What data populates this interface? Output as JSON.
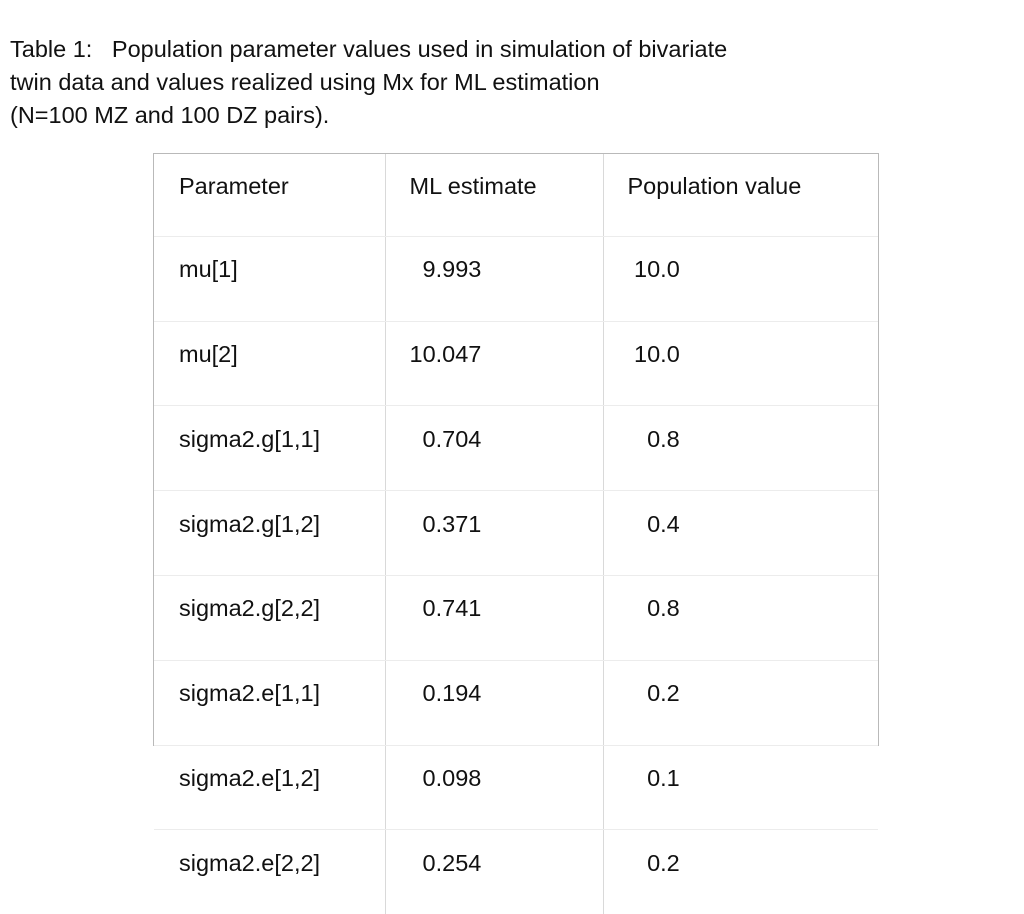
{
  "caption": {
    "lines": [
      "Table 1:   Population parameter values used in simulation of bivariate",
      "twin data and values realized using Mx for ML estimation",
      "(N=100 MZ and 100 DZ pairs)."
    ]
  },
  "table": {
    "headers": [
      "Parameter",
      "ML estimate",
      "Population value"
    ],
    "rows": [
      {
        "parameter": "mu[1]",
        "ml_estimate": "  9.993",
        "population_value": " 10.0"
      },
      {
        "parameter": "mu[2]",
        "ml_estimate": "10.047",
        "population_value": " 10.0"
      },
      {
        "parameter": "sigma2.g[1,1]",
        "ml_estimate": "  0.704",
        "population_value": "   0.8"
      },
      {
        "parameter": "sigma2.g[1,2]",
        "ml_estimate": "  0.371",
        "population_value": "   0.4"
      },
      {
        "parameter": "sigma2.g[2,2]",
        "ml_estimate": "  0.741",
        "population_value": "   0.8"
      },
      {
        "parameter": "sigma2.e[1,1]",
        "ml_estimate": "  0.194",
        "population_value": "   0.2"
      },
      {
        "parameter": "sigma2.e[1,2]",
        "ml_estimate": "  0.098",
        "population_value": "   0.1"
      },
      {
        "parameter": "sigma2.e[2,2]",
        "ml_estimate": "  0.254",
        "population_value": "   0.2"
      }
    ]
  }
}
